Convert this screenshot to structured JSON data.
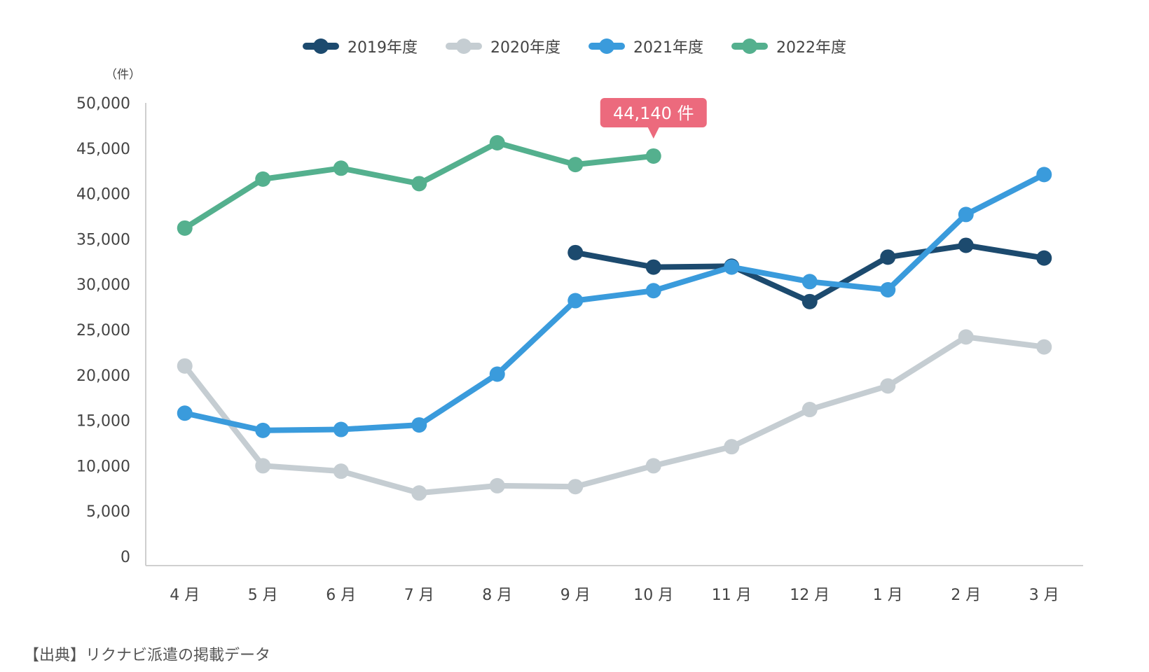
{
  "legend": [
    {
      "label": "2019年度",
      "color": "#1c4a6e"
    },
    {
      "label": "2020年度",
      "color": "#c5cdd2"
    },
    {
      "label": "2021年度",
      "color": "#3a9bdc"
    },
    {
      "label": "2022年度",
      "color": "#54b08e"
    }
  ],
  "unit_label": "（件）",
  "source_note": "【出典】リクナビ派遣の掲載データ",
  "callout": {
    "text": "44,140 件",
    "color": "#ec6a7d",
    "series": "2022年度",
    "month_index": 6
  },
  "chart_data": {
    "type": "line",
    "categories": [
      "4 月",
      "5 月",
      "6 月",
      "7 月",
      "8 月",
      "9 月",
      "10 月",
      "11 月",
      "12 月",
      "1 月",
      "2 月",
      "3 月"
    ],
    "y_ticks": [
      "0",
      "5,000",
      "10,000",
      "15,000",
      "20,000",
      "25,000",
      "30,000",
      "35,000",
      "40,000",
      "45,000",
      "50,000"
    ],
    "ylim": [
      0,
      50000
    ],
    "grid": false,
    "legend_position": "top-center",
    "series": [
      {
        "name": "2019年度",
        "color": "#1c4a6e",
        "values": [
          null,
          null,
          null,
          null,
          null,
          33500,
          31900,
          32000,
          28100,
          33000,
          34300,
          32900
        ]
      },
      {
        "name": "2020年度",
        "color": "#c5cdd2",
        "values": [
          21000,
          10000,
          9400,
          7000,
          7800,
          7700,
          10000,
          12100,
          16200,
          18800,
          24200,
          23100
        ]
      },
      {
        "name": "2021年度",
        "color": "#3a9bdc",
        "values": [
          15800,
          13900,
          14000,
          14500,
          20100,
          28200,
          29300,
          31900,
          30300,
          29400,
          37700,
          42100
        ]
      },
      {
        "name": "2022年度",
        "color": "#54b08e",
        "values": [
          36200,
          41600,
          42800,
          41100,
          45600,
          43200,
          44140,
          null,
          null,
          null,
          null,
          null
        ]
      }
    ]
  }
}
